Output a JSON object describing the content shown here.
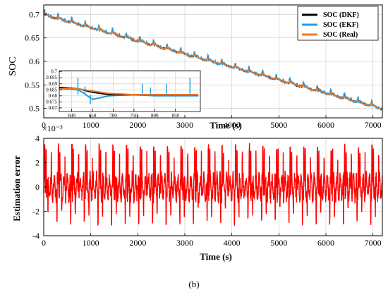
{
  "caption": "(b)",
  "colors": {
    "dkf": "#000000",
    "ekf": "#1e9fe0",
    "real": "#f07a2a",
    "error": "#ff0000",
    "grid": "#c8c8c8"
  },
  "chart_data": [
    {
      "type": "line",
      "ylabel": "SOC",
      "xlabel": "Time (s)",
      "xlim": [
        0,
        7200
      ],
      "ylim": [
        0.48,
        0.72
      ],
      "xticks": [
        0,
        1000,
        2000,
        3000,
        4000,
        5000,
        6000,
        7000
      ],
      "xtick_labels": [
        "0",
        "1000",
        "2000",
        "3000",
        "4000",
        "5000",
        "6000",
        "7000"
      ],
      "yticks": [
        0.5,
        0.55,
        0.6,
        0.65,
        0.7
      ],
      "ytick_labels": [
        "0.5",
        "0.55",
        "0.6",
        "0.65",
        "0.7"
      ],
      "grid": true,
      "legend_position": "top-right",
      "series": [
        {
          "name": "SOC (DKF)",
          "x": [
            0,
            7200
          ],
          "values": [
            0.7,
            0.5
          ]
        },
        {
          "name": "SOC (EKF)",
          "x": [
            0,
            7200
          ],
          "values": [
            0.7,
            0.5
          ]
        },
        {
          "name": "SOC (Real)",
          "x": [
            0,
            7200
          ],
          "values": [
            0.7,
            0.5
          ]
        }
      ],
      "inset": {
        "xlim": [
          570,
          910
        ],
        "ylim": [
          0.667,
          0.701
        ],
        "xticks": [
          600,
          650,
          700,
          750,
          800,
          850
        ],
        "xtick_labels": [
          "600",
          "650",
          "700",
          "750",
          "800",
          "850"
        ],
        "yticks": [
          0.67,
          0.675,
          0.68,
          0.685,
          0.69,
          0.695,
          0.7
        ],
        "ytick_labels": [
          "0.67",
          "0.675",
          "0.68",
          "0.685",
          "0.69",
          "0.695",
          "0.7"
        ],
        "series": [
          {
            "name": "SOC (DKF)",
            "x": [
              570,
              615,
              650,
              690,
              750,
              800,
              850,
              905
            ],
            "values": [
              0.687,
              0.686,
              0.683,
              0.681,
              0.681,
              0.681,
              0.681,
              0.681
            ]
          },
          {
            "name": "SOC (EKF)",
            "x": [
              570,
              615,
              630,
              650,
              690,
              750,
              800,
              850,
              905
            ],
            "values": [
              0.686,
              0.685,
              0.682,
              0.677,
              0.68,
              0.681,
              0.68,
              0.68,
              0.68
            ]
          },
          {
            "name": "SOC (Real)",
            "x": [
              570,
              615,
              650,
              690,
              750,
              800,
              850,
              905
            ],
            "values": [
              0.686,
              0.686,
              0.684,
              0.682,
              0.681,
              0.681,
              0.681,
              0.681
            ]
          }
        ]
      }
    },
    {
      "type": "line",
      "ylabel": "Estimation error",
      "xlabel": "Time (s)",
      "exponent_label": "×10⁻³",
      "xlim": [
        0,
        7200
      ],
      "ylim": [
        -4,
        4
      ],
      "xticks": [
        0,
        1000,
        2000,
        3000,
        4000,
        5000,
        6000,
        7000
      ],
      "xtick_labels": [
        "0",
        "1000",
        "2000",
        "3000",
        "4000",
        "5000",
        "6000",
        "7000"
      ],
      "yticks": [
        -4,
        -2,
        0,
        2,
        4
      ],
      "ytick_labels": [
        "-4",
        "-2",
        "0",
        "2",
        "4"
      ],
      "grid": true,
      "series": [
        {
          "name": "Estimation error",
          "x": [
            0,
            7200
          ],
          "values": [
            0,
            0
          ],
          "range": [
            -3.2,
            3.6
          ]
        }
      ]
    }
  ]
}
